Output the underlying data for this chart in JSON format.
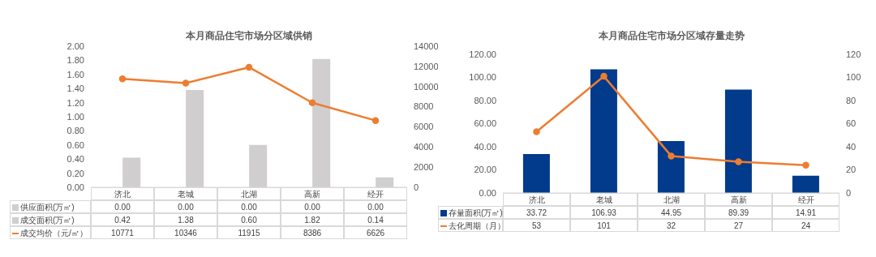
{
  "chart_data": [
    {
      "type": "bar",
      "title": "本月商品住宅市场分区域供销",
      "categories": [
        "济北",
        "老城",
        "北湖",
        "高新",
        "经开"
      ],
      "series": [
        {
          "name": "供应面积(万㎡)",
          "color": "#d0cece",
          "values": [
            0,
            0,
            0,
            0,
            0
          ],
          "value_labels": [
            "0.00",
            "0.00",
            "0.00",
            "0.00",
            "0.00"
          ]
        },
        {
          "name": "成交面积(万㎡)",
          "color": "#d0cece",
          "values": [
            0.42,
            1.38,
            0.6,
            1.82,
            0.14
          ],
          "value_labels": [
            "0.42",
            "1.38",
            "0.60",
            "1.82",
            "0.14"
          ]
        },
        {
          "name": "成交均价（元/㎡）",
          "type": "line",
          "axis": "y2",
          "color": "#ed7d31",
          "values": [
            10771,
            10346,
            11915,
            8386,
            6626
          ],
          "value_labels": [
            "10771",
            "10346",
            "11915",
            "8386",
            "6626"
          ]
        }
      ],
      "ylim": [
        0,
        2
      ],
      "yticks": [
        {
          "value": 0,
          "label": "0.00"
        },
        {
          "value": 0.2,
          "label": "0.20"
        },
        {
          "value": 0.4,
          "label": "0.40"
        },
        {
          "value": 0.6,
          "label": "0.60"
        },
        {
          "value": 0.8,
          "label": "0.80"
        },
        {
          "value": 1,
          "label": "1.00"
        },
        {
          "value": 1.2,
          "label": "1.20"
        },
        {
          "value": 1.4,
          "label": "1.40"
        },
        {
          "value": 1.6,
          "label": "1.60"
        },
        {
          "value": 1.8,
          "label": "1.80"
        },
        {
          "value": 2,
          "label": "2.00"
        }
      ],
      "y2lim": [
        0,
        14000
      ],
      "y2ticks": [
        0,
        2000,
        4000,
        6000,
        8000,
        10000,
        12000,
        14000
      ],
      "marker": "circle",
      "line_style": "solid",
      "grid": false,
      "legend": "bottom"
    },
    {
      "type": "bar",
      "title": "本月商品住宅市场分区域存量走势",
      "categories": [
        "济北",
        "老城",
        "北湖",
        "高新",
        "经开"
      ],
      "series": [
        {
          "name": "存量面积(万㎡)",
          "color": "#023a8c",
          "values": [
            33.72,
            106.93,
            44.95,
            89.39,
            14.91
          ],
          "value_labels": [
            "33.72",
            "106.93",
            "44.95",
            "89.39",
            "14.91"
          ]
        },
        {
          "name": "去化周期（月）",
          "type": "line",
          "axis": "y2",
          "color": "#ed7d31",
          "values": [
            53,
            101,
            32,
            27,
            24
          ],
          "value_labels": [
            "53",
            "101",
            "32",
            "27",
            "24"
          ]
        }
      ],
      "ylim": [
        0,
        120
      ],
      "yticks": [
        {
          "value": 0,
          "label": "0.00"
        },
        {
          "value": 20,
          "label": "20.00"
        },
        {
          "value": 40,
          "label": "40.00"
        },
        {
          "value": 60,
          "label": "60.00"
        },
        {
          "value": 80,
          "label": "80.00"
        },
        {
          "value": 100,
          "label": "100.00"
        },
        {
          "value": 120,
          "label": "120.00"
        }
      ],
      "y2lim": [
        0,
        120
      ],
      "y2ticks": [
        0,
        20,
        40,
        60,
        80,
        100,
        120
      ],
      "marker": "circle",
      "line_style": "solid",
      "grid": false,
      "legend": "bottom"
    }
  ]
}
